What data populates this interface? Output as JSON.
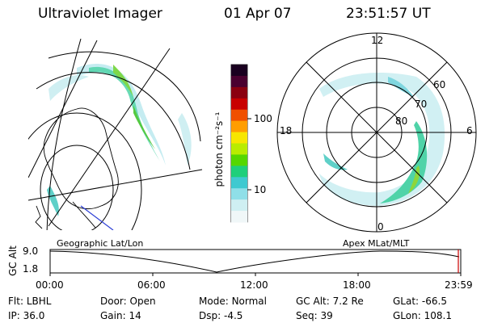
{
  "header": {
    "title": "Ultraviolet Imager",
    "date": "01 Apr 07",
    "time": "23:51:57 UT"
  },
  "colorbar": {
    "unit_label": "photon cm⁻²s⁻¹",
    "ticks": [
      "100",
      "10"
    ],
    "colors": [
      "#1a0020",
      "#4a0030",
      "#8a0010",
      "#c80000",
      "#f05000",
      "#ff9d00",
      "#f7e600",
      "#b9ec00",
      "#55d700",
      "#1fcf7b",
      "#3fc9d0",
      "#8fdfe8",
      "#cfeff2",
      "#f0f7f8"
    ]
  },
  "polar_plot": {
    "mlt_labels": [
      "12",
      "18",
      "6",
      "0"
    ],
    "lat_labels": [
      "60",
      "70",
      "80"
    ]
  },
  "timeline": {
    "y_axis_label": "GC Alt",
    "y_ticks": [
      "9.0",
      "1.8"
    ],
    "left_title": "Geographic Lat/Lon",
    "right_title": "Apex MLat/MLT",
    "x_ticks": [
      "00:00",
      "06:00",
      "12:00",
      "18:00",
      "23:59"
    ]
  },
  "info": {
    "row1": [
      {
        "label": "Flt:",
        "value": "LBHL"
      },
      {
        "label": "Door:",
        "value": "Open"
      },
      {
        "label": "Mode:",
        "value": "Normal"
      },
      {
        "label": "GC Alt:",
        "value": "7.2 Re"
      },
      {
        "label": "GLat:",
        "value": "-66.5"
      }
    ],
    "row2": [
      {
        "label": "IP:",
        "value": "36.0"
      },
      {
        "label": "Gain:",
        "value": "14"
      },
      {
        "label": "Dsp:",
        "value": "-4.5"
      },
      {
        "label": "Seq:",
        "value": "39"
      },
      {
        "label": "GLon:",
        "value": "108.1"
      }
    ]
  }
}
